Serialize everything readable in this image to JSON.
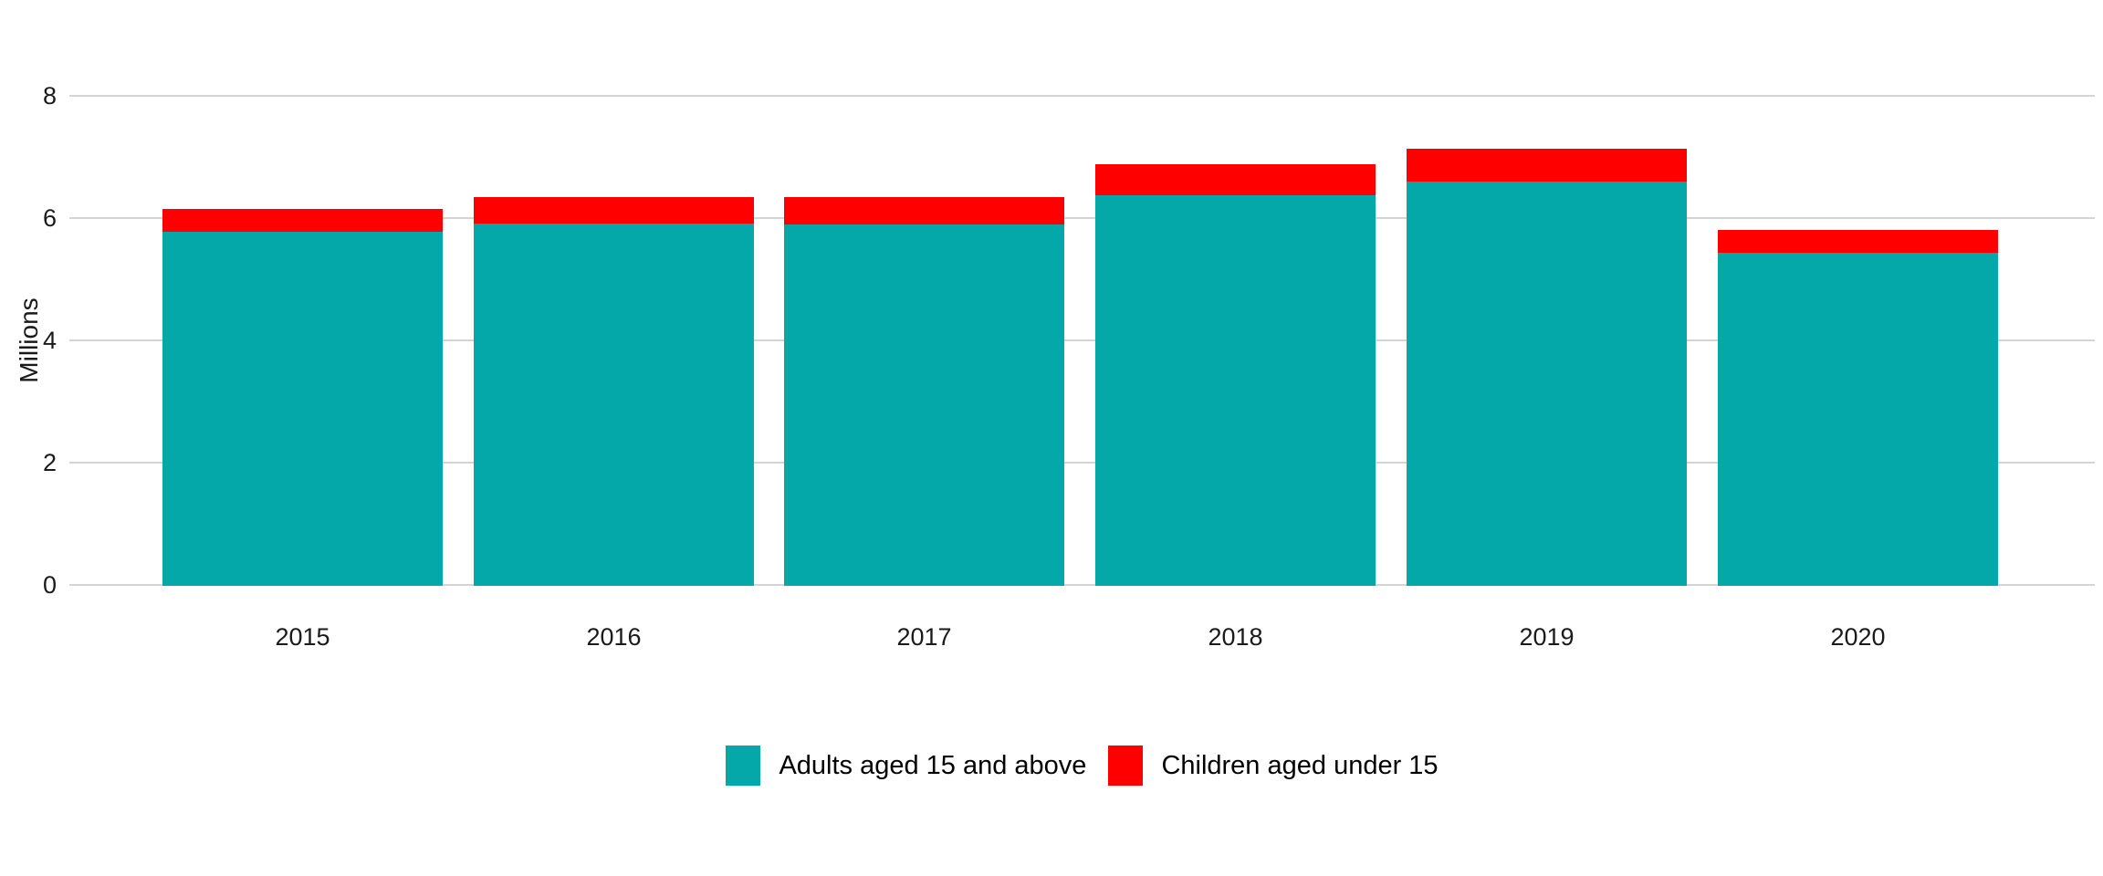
{
  "chart": {
    "y_axis_title": "Millions"
  },
  "chart_data": {
    "type": "bar",
    "stacked": true,
    "title": "",
    "xlabel": "",
    "ylabel": "Millions",
    "categories": [
      "2015",
      "2016",
      "2017",
      "2018",
      "2019",
      "2020"
    ],
    "series": [
      {
        "name": "Adults aged 15 and above",
        "color": "#05a8a8",
        "values": [
          5.78,
          5.91,
          5.9,
          6.37,
          6.59,
          5.43
        ]
      },
      {
        "name": "Children aged under 15",
        "color": "#ff0000",
        "values": [
          0.37,
          0.44,
          0.45,
          0.51,
          0.54,
          0.38
        ]
      }
    ],
    "totals": [
      6.15,
      6.35,
      6.35,
      6.88,
      7.13,
      5.81
    ],
    "ylim": [
      0,
      8
    ],
    "yticks": [
      0,
      2,
      4,
      6,
      8
    ],
    "grid": true,
    "gridline_color": "#d5d5d5",
    "legend_position": "bottom"
  }
}
